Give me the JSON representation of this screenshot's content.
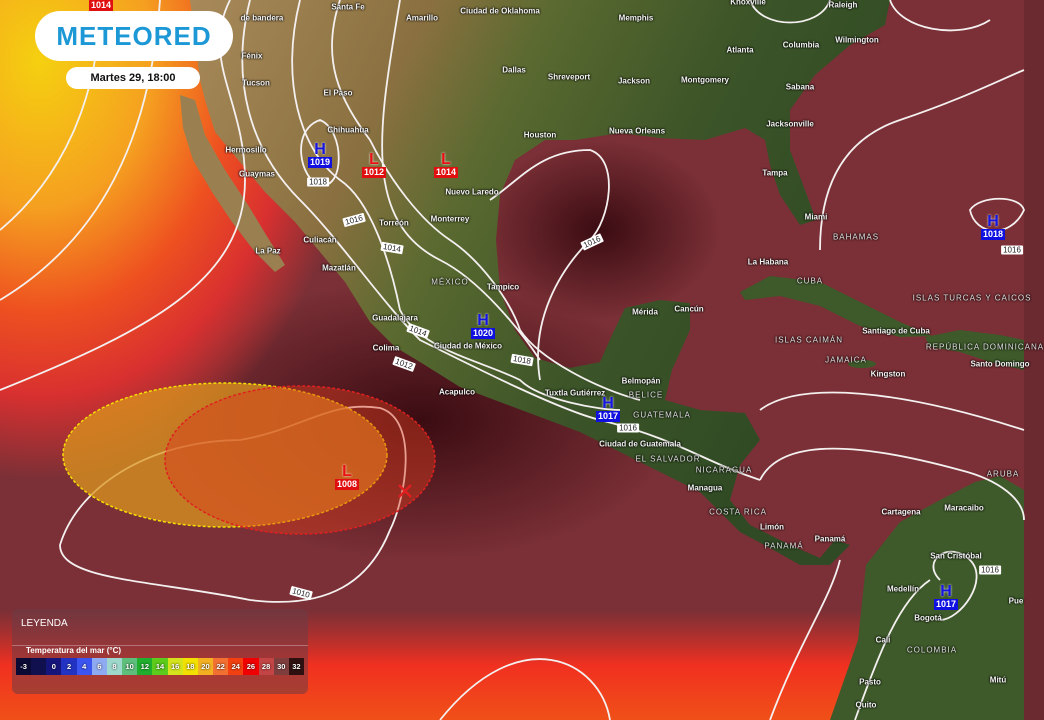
{
  "header": {
    "logo_text": "METEORED",
    "datetime": "Martes 29, 18:00"
  },
  "legend": {
    "title": "LEYENDA",
    "subtitle": "Temperatura del mar (°C)",
    "scale": [
      {
        "label": "-3",
        "color": "#0a0a35"
      },
      {
        "label": "",
        "color": "#10104f"
      },
      {
        "label": "0",
        "color": "#15157c"
      },
      {
        "label": "2",
        "color": "#2233c4"
      },
      {
        "label": "4",
        "color": "#3d55f0"
      },
      {
        "label": "6",
        "color": "#8eaaf0"
      },
      {
        "label": "8",
        "color": "#9ed8cc"
      },
      {
        "label": "10",
        "color": "#5ebf7c"
      },
      {
        "label": "12",
        "color": "#1fae2e"
      },
      {
        "label": "14",
        "color": "#5ccb1c"
      },
      {
        "label": "16",
        "color": "#d4e31c"
      },
      {
        "label": "18",
        "color": "#f2e000"
      },
      {
        "label": "20",
        "color": "#f3b122"
      },
      {
        "label": "22",
        "color": "#f27132"
      },
      {
        "label": "24",
        "color": "#f24010"
      },
      {
        "label": "26",
        "color": "#f00000"
      },
      {
        "label": "28",
        "color": "#c24444"
      },
      {
        "label": "30",
        "color": "#7f3e3e"
      },
      {
        "label": "32",
        "color": "#2e1010"
      }
    ]
  },
  "cities": [
    "de bandera",
    "Santa Fe",
    "Amarillo",
    "Ciudad de Oklahoma",
    "Memphis",
    "Knoxville",
    "Raleigh",
    "Fénix",
    "Tucson",
    "El Paso",
    "Dallas",
    "Shreveport",
    "Jackson",
    "Montgomery",
    "Atlanta",
    "Columbia",
    "Wilmington",
    "Sabana",
    "Houston",
    "Nueva Orleans",
    "Jacksonville",
    "Hermosillo",
    "Chihuahua",
    "Nuevo Laredo",
    "Guaymas",
    "Tampa",
    "Miami",
    "Torreón",
    "Monterrey",
    "Culiacán",
    "La Paz",
    "Mazatlán",
    "Tampico",
    "La Habana",
    "Mérida",
    "Cancún",
    "Guadalajara",
    "Ciudad de México",
    "Colima",
    "Santiago de Cuba",
    "Santo Domingo",
    "Kingston",
    "Acapulco",
    "Belmopán",
    "Tuxtla Gutiérrez",
    "Ciudad de Guatemala",
    "Managua",
    "Cartagena",
    "Maracaibo",
    "Limón",
    "Panamá",
    "San Cristóbal",
    "Medellín",
    "Bogotá",
    "Pue",
    "Cali",
    "Pasto",
    "Mitú",
    "Quito"
  ],
  "regions": [
    "BAHAMAS",
    "MÉXICO",
    "CUBA",
    "ISLAS TURCAS Y CAICOS",
    "ISLAS CAIMÁN",
    "REPÚBLICA DOMINICANA",
    "JAMAICA",
    "BELICE",
    "GUATEMALA",
    "EL SALVADOR",
    "NICARAGUA",
    "ARUBA",
    "COSTA RICA",
    "PANAMÁ",
    "COLOMBIA"
  ],
  "pressure_centers": [
    {
      "type": "L",
      "value": "1014"
    },
    {
      "type": "H",
      "value": "1019"
    },
    {
      "type": "L",
      "value": "1012"
    },
    {
      "type": "L",
      "value": "1014"
    },
    {
      "type": "H",
      "value": "1018"
    },
    {
      "type": "H",
      "value": "1020"
    },
    {
      "type": "H",
      "value": "1017"
    },
    {
      "type": "L",
      "value": "1008"
    },
    {
      "type": "H",
      "value": "1017"
    }
  ],
  "isobar_labels": [
    "1018",
    "1016",
    "1014",
    "1016",
    "1014",
    "1018",
    "1012",
    "1016",
    "1010",
    "1016",
    "1016"
  ],
  "colors": {
    "brand": "#1b98d5",
    "high": "#1010e0",
    "low": "#e01010",
    "isobar": "#ffffff",
    "cone_yellow": "#f5e000",
    "cone_red": "#e02020"
  }
}
